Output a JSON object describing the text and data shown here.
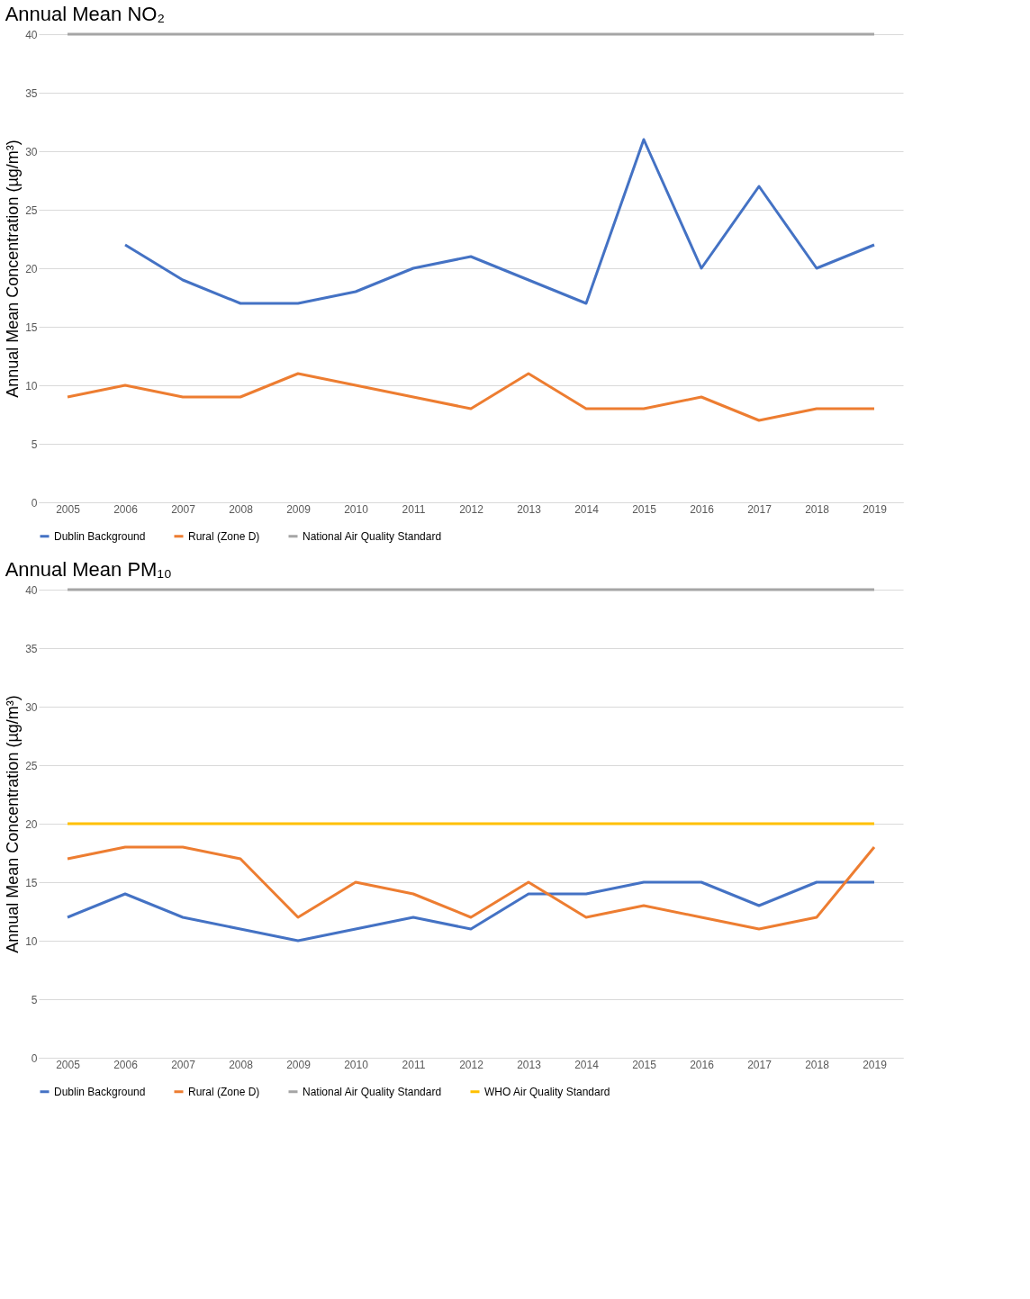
{
  "chart_data": [
    {
      "type": "line",
      "title": "Annual Mean NO₂",
      "ylabel": "Annual Mean Concentration (µg/m³)",
      "categories": [
        "2005",
        "2006",
        "2007",
        "2008",
        "2009",
        "2010",
        "2011",
        "2012",
        "2013",
        "2014",
        "2015",
        "2016",
        "2017",
        "2018",
        "2019"
      ],
      "series": [
        {
          "name": "Dublin Background",
          "color": "#4472c4",
          "values": [
            null,
            22,
            19,
            17,
            17,
            18,
            20,
            21,
            19,
            17,
            31,
            20,
            27,
            20,
            22
          ]
        },
        {
          "name": "Rural (Zone D)",
          "color": "#ed7d31",
          "values": [
            9,
            10,
            9,
            9,
            11,
            10,
            9,
            8,
            11,
            8,
            8,
            9,
            7,
            8,
            8
          ]
        },
        {
          "name": "National Air Quality Standard",
          "color": "#a5a5a5",
          "values": [
            40,
            40,
            40,
            40,
            40,
            40,
            40,
            40,
            40,
            40,
            40,
            40,
            40,
            40,
            40
          ]
        }
      ],
      "ylim": [
        0,
        40
      ],
      "yticks": [
        0,
        5,
        10,
        15,
        20,
        25,
        30,
        35,
        40
      ],
      "grid": "y",
      "legend": "bottom",
      "marker": "none",
      "line_style": "solid"
    },
    {
      "type": "line",
      "title": "Annual Mean PM₁₀",
      "ylabel": "Annual Mean Concentration (µg/m³)",
      "categories": [
        "2005",
        "2006",
        "2007",
        "2008",
        "2009",
        "2010",
        "2011",
        "2012",
        "2013",
        "2014",
        "2015",
        "2016",
        "2017",
        "2018",
        "2019"
      ],
      "series": [
        {
          "name": "Dublin Background",
          "color": "#4472c4",
          "values": [
            12,
            14,
            12,
            11,
            10,
            11,
            12,
            11,
            14,
            14,
            15,
            15,
            13,
            15,
            15
          ]
        },
        {
          "name": "Rural (Zone D)",
          "color": "#ed7d31",
          "values": [
            17,
            18,
            18,
            17,
            12,
            15,
            14,
            12,
            15,
            12,
            13,
            12,
            11,
            12,
            18
          ]
        },
        {
          "name": "National Air Quality Standard",
          "color": "#a5a5a5",
          "values": [
            40,
            40,
            40,
            40,
            40,
            40,
            40,
            40,
            40,
            40,
            40,
            40,
            40,
            40,
            40
          ]
        },
        {
          "name": "WHO Air Quality Standard",
          "color": "#ffc000",
          "values": [
            20,
            20,
            20,
            20,
            20,
            20,
            20,
            20,
            20,
            20,
            20,
            20,
            20,
            20,
            20
          ]
        }
      ],
      "ylim": [
        0,
        40
      ],
      "yticks": [
        0,
        5,
        10,
        15,
        20,
        25,
        30,
        35,
        40
      ],
      "grid": "y",
      "legend": "bottom",
      "marker": "none",
      "line_style": "solid"
    }
  ]
}
